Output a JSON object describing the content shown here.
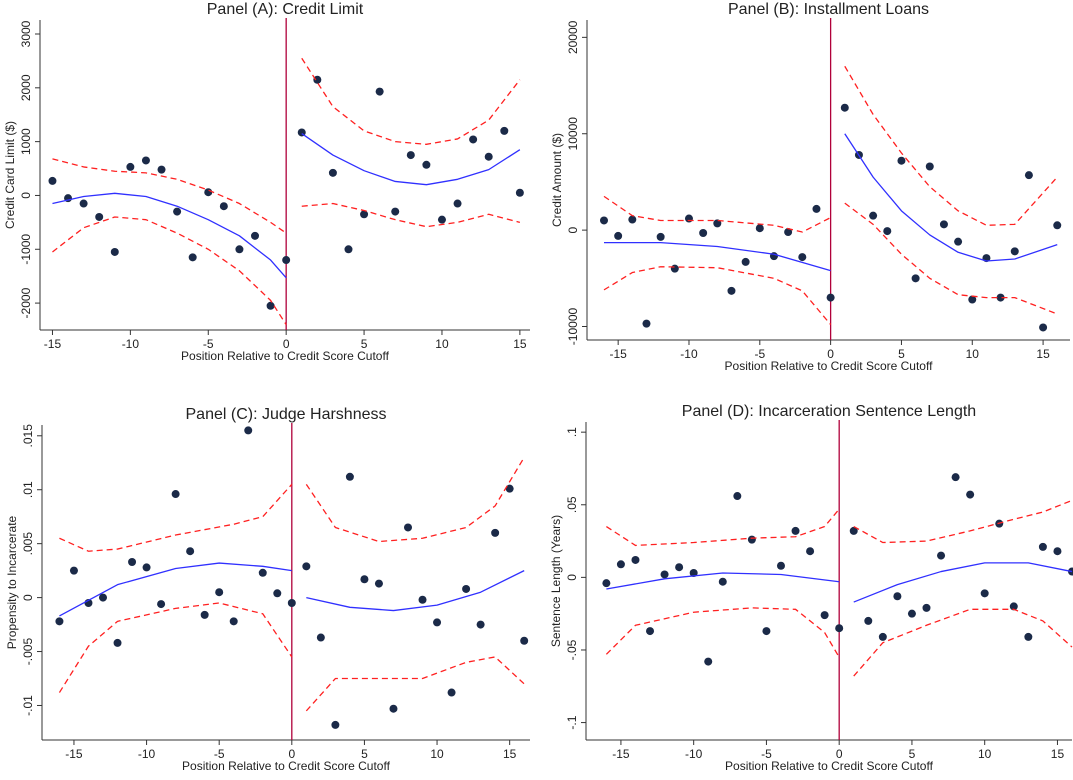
{
  "chart_data": [
    {
      "type": "scatter",
      "title": "Panel (A): Credit Limit",
      "xlabel": "Position Relative to Credit Score Cutoff",
      "ylabel": "Credit Card Limit ($)",
      "xlim": [
        -15.8,
        15.65
      ],
      "ylim": [
        -2500,
        3260
      ],
      "xticks": [
        -15,
        -10,
        -5,
        0,
        5,
        10,
        15
      ],
      "yticks": [
        -2000,
        -1000,
        0,
        1000,
        2000,
        3000
      ],
      "cutoff": 0,
      "cutoff_color": "#b0003a",
      "series": [
        {
          "style": "dots",
          "color": "#1b2a48",
          "x": [
            -15,
            -14,
            -13,
            -12,
            -11,
            -10,
            -9,
            -8,
            -7,
            -6,
            -5,
            -4,
            -3,
            -2,
            -1,
            0,
            1,
            2,
            3,
            4,
            5,
            6,
            7,
            8,
            9,
            10,
            11,
            12,
            13,
            14,
            15
          ],
          "values": [
            270,
            -50,
            -150,
            -400,
            -1050,
            530,
            650,
            480,
            -300,
            -1150,
            60,
            -200,
            -1000,
            -750,
            -2050,
            -1200,
            1170,
            2150,
            420,
            -1000,
            -350,
            1930,
            -300,
            750,
            570,
            -450,
            -150,
            1040,
            720,
            1200,
            50
          ]
        },
        {
          "style": "line",
          "color": "#3030ff",
          "x": [
            -15,
            -13,
            -11,
            -9,
            -7,
            -5,
            -3,
            -1,
            0
          ],
          "values": [
            -150,
            -20,
            40,
            -20,
            -200,
            -450,
            -750,
            -1200,
            -1530
          ]
        },
        {
          "style": "line",
          "color": "#3030ff",
          "x": [
            1,
            3,
            5,
            7,
            9,
            11,
            13,
            15
          ],
          "values": [
            1150,
            750,
            460,
            260,
            200,
            300,
            480,
            850
          ]
        },
        {
          "style": "dashed",
          "color": "#ff2020",
          "x": [
            -15,
            -13,
            -11,
            -9,
            -7,
            -5,
            -3,
            -1,
            0
          ],
          "values": [
            680,
            530,
            450,
            420,
            300,
            100,
            -150,
            -500,
            -700
          ]
        },
        {
          "style": "dashed",
          "color": "#ff2020",
          "x": [
            -15,
            -13,
            -11,
            -9,
            -7,
            -5,
            -3,
            -1,
            0
          ],
          "values": [
            -1050,
            -600,
            -400,
            -450,
            -700,
            -1000,
            -1400,
            -1950,
            -2400
          ]
        },
        {
          "style": "dashed",
          "color": "#ff2020",
          "x": [
            1,
            3,
            5,
            7,
            9,
            11,
            13,
            15
          ],
          "values": [
            2550,
            1650,
            1200,
            1000,
            950,
            1050,
            1400,
            2150
          ]
        },
        {
          "style": "dashed",
          "color": "#ff2020",
          "x": [
            1,
            3,
            5,
            7,
            9,
            11,
            13,
            15
          ],
          "values": [
            -200,
            -150,
            -280,
            -450,
            -580,
            -500,
            -350,
            -500
          ]
        }
      ]
    },
    {
      "type": "scatter",
      "title": "Panel (B): Installment Loans",
      "xlabel": "Position Relative to Credit Score Cutoff",
      "ylabel": "Credit Amount ($)",
      "xlim": [
        -17.2,
        16.9
      ],
      "ylim": [
        -11400,
        21800
      ],
      "xticks": [
        -15,
        -10,
        -5,
        0,
        5,
        10,
        15
      ],
      "yticks": [
        -10000,
        0,
        10000,
        20000
      ],
      "cutoff": 0,
      "cutoff_color": "#b0003a",
      "series": [
        {
          "style": "dots",
          "color": "#1b2a48",
          "x": [
            -16,
            -15,
            -14,
            -13,
            -12,
            -11,
            -10,
            -9,
            -8,
            -7,
            -6,
            -5,
            -4,
            -3,
            -2,
            -1,
            0,
            1,
            2,
            3,
            4,
            5,
            6,
            7,
            8,
            9,
            10,
            11,
            12,
            13,
            14,
            15,
            16
          ],
          "values": [
            1000,
            -600,
            1100,
            -9700,
            -700,
            -4000,
            1200,
            -300,
            700,
            -6300,
            -3300,
            200,
            -2700,
            -200,
            -2800,
            2200,
            -7000,
            12700,
            7800,
            1500,
            -100,
            7200,
            -5000,
            6600,
            600,
            -1200,
            -7200,
            -2900,
            -7000,
            -2200,
            5700,
            -10100,
            500
          ]
        },
        {
          "style": "line",
          "color": "#3030ff",
          "x": [
            -16,
            -12,
            -8,
            -4,
            0
          ],
          "values": [
            -1300,
            -1300,
            -1700,
            -2500,
            -4200
          ]
        },
        {
          "style": "line",
          "color": "#3030ff",
          "x": [
            1,
            3,
            5,
            7,
            9,
            11,
            13,
            16
          ],
          "values": [
            10000,
            5500,
            2000,
            -500,
            -2300,
            -3200,
            -3000,
            -1500
          ]
        },
        {
          "style": "dashed",
          "color": "#ff2020",
          "x": [
            -16,
            -14,
            -12,
            -8,
            -4,
            -2,
            0
          ],
          "values": [
            3500,
            1500,
            1000,
            1000,
            500,
            -200,
            1300
          ]
        },
        {
          "style": "dashed",
          "color": "#ff2020",
          "x": [
            -16,
            -14,
            -12,
            -8,
            -4,
            -2,
            0
          ],
          "values": [
            -6200,
            -4400,
            -3800,
            -3900,
            -5000,
            -6300,
            -9800
          ]
        },
        {
          "style": "dashed",
          "color": "#ff2020",
          "x": [
            1,
            3,
            5,
            7,
            9,
            11,
            13,
            16
          ],
          "values": [
            17000,
            12000,
            8000,
            4500,
            2000,
            500,
            600,
            5500
          ]
        },
        {
          "style": "dashed",
          "color": "#ff2020",
          "x": [
            1,
            3,
            5,
            7,
            9,
            11,
            13,
            16
          ],
          "values": [
            2800,
            600,
            -2500,
            -5000,
            -6700,
            -7000,
            -7000,
            -8700
          ]
        }
      ]
    },
    {
      "type": "scatter",
      "title": "Panel (C): Judge Harshness",
      "xlabel": "Position Relative to Credit Score Cutoff",
      "ylabel": "Propensity to Incarcerate",
      "xlim": [
        -17.2,
        16.4
      ],
      "ylim": [
        -0.0132,
        0.016
      ],
      "xticks": [
        -15,
        -10,
        -5,
        0,
        5,
        10,
        15
      ],
      "yticks": [
        {
          "value": -0.01,
          "label": "-.01"
        },
        {
          "value": -0.005,
          "label": "-.005"
        },
        0,
        {
          "value": 0.005,
          "label": ".005"
        },
        {
          "value": 0.01,
          "label": ".01"
        },
        {
          "value": 0.015,
          "label": ".015"
        }
      ],
      "cutoff": 0,
      "cutoff_color": "#b0003a",
      "series": [
        {
          "style": "dots",
          "color": "#1b2a48",
          "x": [
            -16,
            -15,
            -14,
            -13,
            -12,
            -11,
            -10,
            -9,
            -8,
            -7,
            -6,
            -5,
            -4,
            -3,
            -2,
            -1,
            0,
            1,
            2,
            3,
            4,
            5,
            6,
            7,
            8,
            9,
            10,
            11,
            12,
            13,
            14,
            15,
            16
          ],
          "values": [
            -0.0022,
            0.0025,
            -0.0005,
            0,
            -0.0042,
            0.0033,
            0.0028,
            -0.0006,
            0.0096,
            0.0043,
            -0.0016,
            0.0005,
            -0.0022,
            0.0155,
            0.0023,
            0.0004,
            -0.0005,
            0.0029,
            -0.0037,
            -0.0118,
            0.0112,
            0.0017,
            0.0013,
            -0.0103,
            0.0065,
            -0.0002,
            -0.0023,
            -0.0088,
            0.0008,
            -0.0025,
            0.006,
            0.0101,
            -0.004
          ]
        },
        {
          "style": "line",
          "color": "#3030ff",
          "x": [
            -16,
            -12,
            -8,
            -5,
            -2,
            0
          ],
          "values": [
            -0.0017,
            0.0012,
            0.0027,
            0.0032,
            0.0029,
            0.0025
          ]
        },
        {
          "style": "line",
          "color": "#3030ff",
          "x": [
            1,
            4,
            7,
            10,
            13,
            16
          ],
          "values": [
            0,
            -0.0009,
            -0.0012,
            -0.0007,
            0.0005,
            0.0025
          ]
        },
        {
          "style": "dashed",
          "color": "#ff2020",
          "x": [
            -16,
            -14,
            -12,
            -8,
            -4,
            -2,
            0
          ],
          "values": [
            0.0055,
            0.0043,
            0.0045,
            0.0058,
            0.0068,
            0.0075,
            0.0105
          ]
        },
        {
          "style": "dashed",
          "color": "#ff2020",
          "x": [
            -16,
            -14,
            -12,
            -8,
            -5,
            -2,
            0
          ],
          "values": [
            -0.0088,
            -0.0045,
            -0.0022,
            -0.001,
            -0.0005,
            -0.0015,
            -0.0055
          ]
        },
        {
          "style": "dashed",
          "color": "#ff2020",
          "x": [
            1,
            3,
            6,
            9,
            12,
            14,
            16
          ],
          "values": [
            0.0105,
            0.0065,
            0.0052,
            0.0055,
            0.0065,
            0.0085,
            0.013
          ]
        },
        {
          "style": "dashed",
          "color": "#ff2020",
          "x": [
            1,
            3,
            6,
            9,
            12,
            14,
            16
          ],
          "values": [
            -0.0105,
            -0.0075,
            -0.0075,
            -0.0075,
            -0.006,
            -0.0055,
            -0.008
          ]
        }
      ]
    },
    {
      "type": "scatter",
      "title": "Panel (D): Incarceration Sentence Length",
      "xlabel": "Position Relative to Credit Score Cutoff",
      "ylabel": "Sentence Length (Years)",
      "xlim": [
        -17.4,
        16
      ],
      "ylim": [
        -0.112,
        0.107
      ],
      "xticks": [
        -15,
        -10,
        -5,
        0,
        5,
        10,
        15
      ],
      "yticks": [
        {
          "value": -0.1,
          "label": "-.1"
        },
        {
          "value": -0.05,
          "label": "-.05"
        },
        0,
        {
          "value": 0.05,
          "label": ".05"
        },
        {
          "value": 0.1,
          "label": ".1"
        }
      ],
      "cutoff": 0,
      "cutoff_color": "#b0003a",
      "series": [
        {
          "style": "dots",
          "color": "#1b2a48",
          "x": [
            -16,
            -15,
            -14,
            -13,
            -12,
            -11,
            -10,
            -9,
            -8,
            -7,
            -6,
            -5,
            -4,
            -3,
            -2,
            -1,
            0,
            1,
            2,
            3,
            4,
            5,
            6,
            7,
            8,
            9,
            10,
            11,
            12,
            13,
            14,
            15,
            16
          ],
          "values": [
            -0.004,
            0.009,
            0.012,
            -0.037,
            0.002,
            0.007,
            0.003,
            -0.058,
            -0.003,
            0.056,
            0.026,
            -0.037,
            0.008,
            0.032,
            0.018,
            -0.026,
            -0.035,
            0.032,
            -0.03,
            -0.041,
            -0.013,
            -0.025,
            -0.021,
            0.015,
            0.069,
            0.057,
            -0.011,
            0.037,
            -0.02,
            -0.041,
            0.021,
            0.018,
            0.004
          ]
        },
        {
          "style": "line",
          "color": "#3030ff",
          "x": [
            -16,
            -12,
            -8,
            -4,
            0
          ],
          "values": [
            -0.008,
            -0.001,
            0.003,
            0.002,
            -0.003
          ]
        },
        {
          "style": "line",
          "color": "#3030ff",
          "x": [
            1,
            4,
            7,
            10,
            13,
            16
          ],
          "values": [
            -0.017,
            -0.005,
            0.004,
            0.01,
            0.01,
            0.004
          ]
        },
        {
          "style": "dashed",
          "color": "#ff2020",
          "x": [
            -16,
            -14,
            -10,
            -6,
            -3,
            -1,
            0
          ],
          "values": [
            0.035,
            0.022,
            0.024,
            0.027,
            0.028,
            0.035,
            0.047
          ]
        },
        {
          "style": "dashed",
          "color": "#ff2020",
          "x": [
            -16,
            -14,
            -10,
            -6,
            -3,
            -1,
            0
          ],
          "values": [
            -0.053,
            -0.033,
            -0.024,
            -0.021,
            -0.022,
            -0.038,
            -0.055
          ]
        },
        {
          "style": "dashed",
          "color": "#ff2020",
          "x": [
            1,
            3,
            6,
            9,
            12,
            14,
            16
          ],
          "values": [
            0.035,
            0.024,
            0.025,
            0.032,
            0.04,
            0.045,
            0.053
          ]
        },
        {
          "style": "dashed",
          "color": "#ff2020",
          "x": [
            1,
            3,
            6,
            9,
            12,
            14,
            16
          ],
          "values": [
            -0.068,
            -0.045,
            -0.033,
            -0.022,
            -0.022,
            -0.03,
            -0.048
          ]
        }
      ]
    }
  ]
}
